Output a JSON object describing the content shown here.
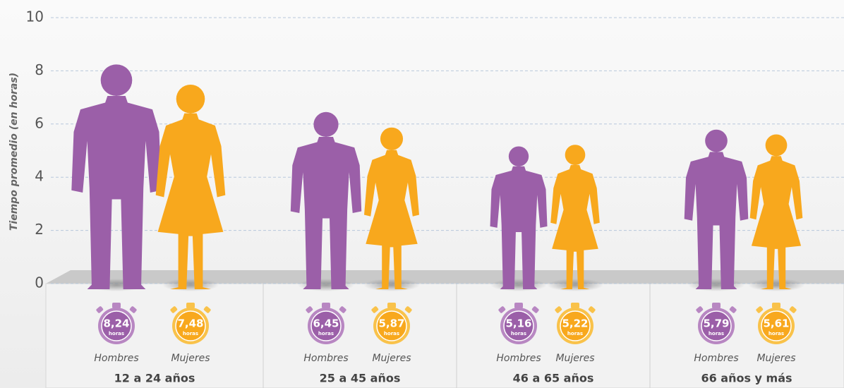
{
  "chart_data": {
    "type": "bar",
    "y_label": "Tiempo promedio (en horas)",
    "categories": [
      "12 a 24 años",
      "25 a 45 años",
      "46 a 65 años",
      "66 años y más"
    ],
    "unit_label": "horas",
    "series": [
      {
        "name": "Hombres",
        "color": "#9b5fa8",
        "values": [
          8.24,
          6.45,
          5.16,
          5.79
        ],
        "value_labels": [
          "8,24",
          "6,45",
          "5,16",
          "5,79"
        ]
      },
      {
        "name": "Mujeres",
        "color": "#f8a81d",
        "values": [
          7.48,
          5.87,
          5.22,
          5.61
        ],
        "value_labels": [
          "7,48",
          "5,87",
          "5,22",
          "5,61"
        ]
      }
    ],
    "ylim": [
      0,
      10
    ],
    "yticks": [
      0,
      2,
      4,
      6,
      8,
      10
    ],
    "grid": true
  }
}
